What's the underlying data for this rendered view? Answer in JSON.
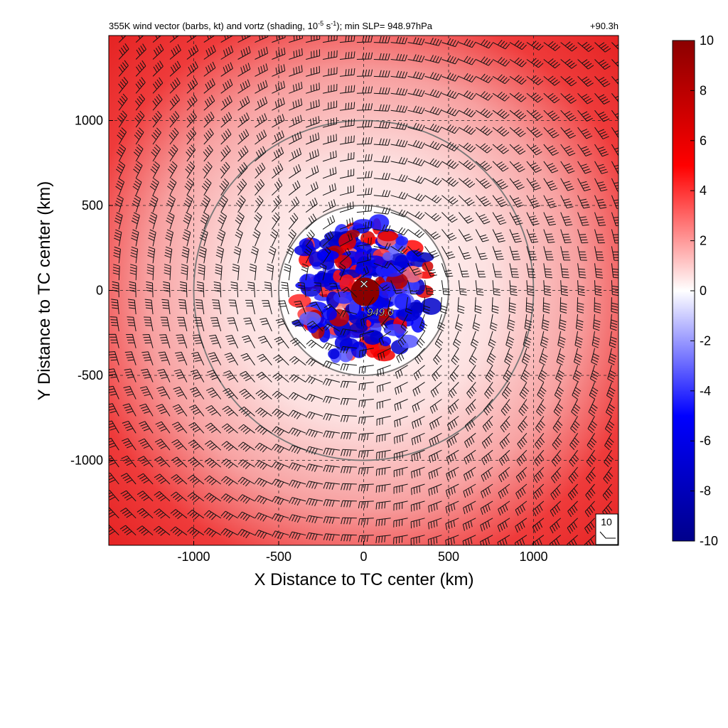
{
  "chart_data": {
    "type": "heatmap",
    "title": "355K wind vector (barbs, kt) and vortz (shading, 10",
    "title_exponent": "-5",
    "title_unit_tail": " s",
    "title_unit_exponent": "-1",
    "title_suffix": "); min SLP= 948.97hPa",
    "time_label": "+90.3h",
    "xlabel": "X Distance to TC center (km)",
    "ylabel": "Y Distance to TC center (km)",
    "xlim": [
      -1500,
      1500
    ],
    "ylim": [
      -1500,
      1500
    ],
    "x_ticks": [
      -1000,
      -500,
      0,
      500,
      1000
    ],
    "y_ticks": [
      -1000,
      -500,
      0,
      500,
      1000
    ],
    "x_tick_labels": [
      "-1000",
      "-500",
      "0",
      "500",
      "1000"
    ],
    "y_tick_labels": [
      "-1000",
      "-500",
      "0",
      "500",
      "1000"
    ],
    "grid": true,
    "range_rings_km": [
      500,
      1000
    ],
    "colorbar": {
      "min": -10,
      "max": 10,
      "ticks": [
        -10,
        -8,
        -6,
        -4,
        -2,
        0,
        2,
        4,
        6,
        8,
        10
      ],
      "tick_labels": [
        "-10",
        "-8",
        "-6",
        "-4",
        "-2",
        "0",
        "2",
        "4",
        "6",
        "8",
        "10"
      ],
      "colors": [
        "#00008b",
        "#0000ff",
        "#ffffff",
        "#ff0000",
        "#8b0000"
      ]
    },
    "center_marker": "✕",
    "center_value_label": "949.0",
    "barb_reference_label": "10",
    "vorticity_structure": [
      {
        "region": "core",
        "r_km": [
          0,
          80
        ],
        "value": 10
      },
      {
        "region": "inner negative band",
        "r_km": [
          100,
          420
        ],
        "value": -8
      },
      {
        "region": "ring",
        "r_km": [
          420,
          800
        ],
        "value": 1
      },
      {
        "region": "outer band",
        "r_km": [
          900,
          1500
        ],
        "value": 7
      }
    ]
  }
}
